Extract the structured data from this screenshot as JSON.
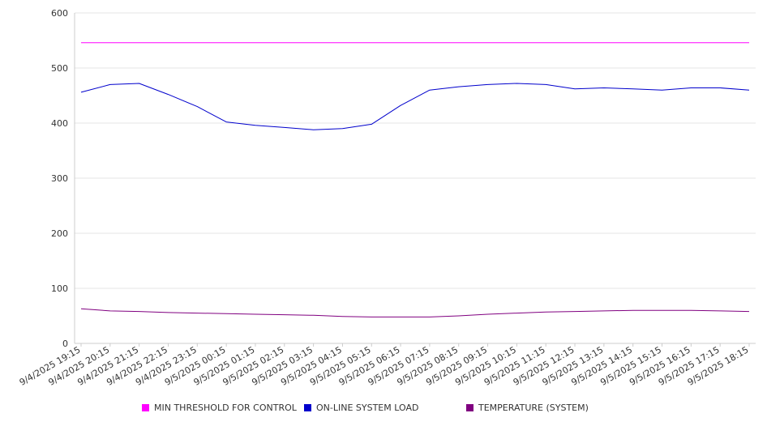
{
  "chart_data": {
    "type": "line",
    "title": "",
    "xlabel": "",
    "ylabel": "",
    "ylim": [
      0,
      600
    ],
    "yticks": [
      0,
      100,
      200,
      300,
      400,
      500,
      600
    ],
    "grid": true,
    "legend_position": "bottom",
    "x_labels": [
      "9/4/2025 19:15",
      "9/4/2025 20:15",
      "9/4/2025 21:15",
      "9/4/2025 22:15",
      "9/4/2025 23:15",
      "9/5/2025 00:15",
      "9/5/2025 01:15",
      "9/5/2025 02:15",
      "9/5/2025 03:15",
      "9/5/2025 04:15",
      "9/5/2025 05:15",
      "9/5/2025 06:15",
      "9/5/2025 07:15",
      "9/5/2025 08:15",
      "9/5/2025 09:15",
      "9/5/2025 10:15",
      "9/5/2025 11:15",
      "9/5/2025 12:15",
      "9/5/2025 13:15",
      "9/5/2025 14:15",
      "9/5/2025 15:15",
      "9/5/2025 16:15",
      "9/5/2025 17:15",
      "9/5/2025 18:15"
    ],
    "series": [
      {
        "name": "MIN THRESHOLD FOR CONTROL",
        "color": "#ff00ff",
        "values": [
          546,
          546,
          546,
          546,
          546,
          546,
          546,
          546,
          546,
          546,
          546,
          546,
          546,
          546,
          546,
          546,
          546,
          546,
          546,
          546,
          546,
          546,
          546,
          546
        ]
      },
      {
        "name": "ON-LINE SYSTEM LOAD",
        "color": "#0000cc",
        "values": [
          456,
          470,
          472,
          452,
          430,
          402,
          396,
          392,
          388,
          390,
          398,
          432,
          460,
          466,
          470,
          472,
          470,
          462,
          464,
          462,
          460,
          464,
          464,
          460
        ]
      },
      {
        "name": "TEMPERATURE (SYSTEM)",
        "color": "#800080",
        "values": [
          63,
          59,
          58,
          56,
          55,
          54,
          53,
          52,
          51,
          49,
          48,
          48,
          48,
          50,
          53,
          55,
          57,
          58,
          59,
          60,
          60,
          60,
          59,
          58
        ]
      }
    ]
  }
}
